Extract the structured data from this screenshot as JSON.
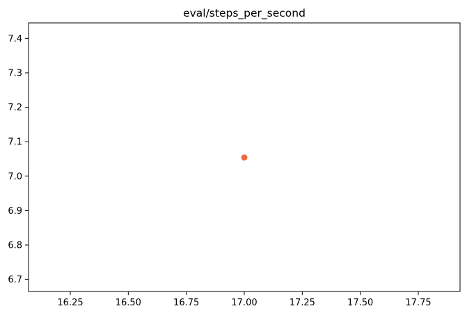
{
  "chart_data": {
    "type": "scatter",
    "title": "eval/steps_per_second",
    "xlabel": "",
    "ylabel": "",
    "x": [
      17.0
    ],
    "y": [
      7.054
    ],
    "point_color": "#f26b40",
    "xlim": [
      16.07,
      17.93
    ],
    "ylim": [
      6.665,
      7.445
    ],
    "xticks": [
      16.25,
      16.5,
      16.75,
      17.0,
      17.25,
      17.5,
      17.75
    ],
    "xtick_labels": [
      "16.25",
      "16.50",
      "16.75",
      "17.00",
      "17.25",
      "17.50",
      "17.75"
    ],
    "yticks": [
      6.7,
      6.8,
      6.9,
      7.0,
      7.1,
      7.2,
      7.3,
      7.4
    ],
    "ytick_labels": [
      "6.7",
      "6.8",
      "6.9",
      "7.0",
      "7.1",
      "7.2",
      "7.3",
      "7.4"
    ],
    "grid": false,
    "legend": "none"
  }
}
